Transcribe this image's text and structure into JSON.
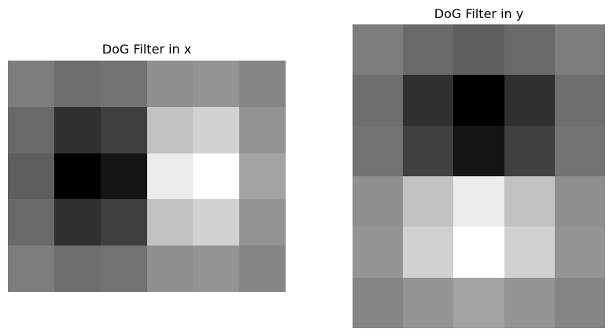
{
  "chart_data": [
    {
      "type": "heatmap",
      "title": "DoG Filter in x",
      "colormap": "gray",
      "axes_visible": false,
      "rows": 5,
      "cols": 6,
      "values": [
        [
          0.49,
          0.43,
          0.45,
          0.56,
          0.58,
          0.52
        ],
        [
          0.41,
          0.19,
          0.25,
          0.76,
          0.82,
          0.58
        ],
        [
          0.37,
          0.0,
          0.08,
          0.92,
          1.0,
          0.64
        ],
        [
          0.41,
          0.19,
          0.25,
          0.76,
          0.82,
          0.58
        ],
        [
          0.49,
          0.43,
          0.45,
          0.56,
          0.58,
          0.52
        ]
      ]
    },
    {
      "type": "heatmap",
      "title": "DoG Filter in y",
      "colormap": "gray",
      "axes_visible": false,
      "rows": 6,
      "cols": 5,
      "values": [
        [
          0.49,
          0.41,
          0.37,
          0.41,
          0.49
        ],
        [
          0.43,
          0.19,
          0.0,
          0.19,
          0.43
        ],
        [
          0.45,
          0.25,
          0.08,
          0.25,
          0.45
        ],
        [
          0.56,
          0.76,
          0.92,
          0.76,
          0.56
        ],
        [
          0.58,
          0.82,
          1.0,
          0.82,
          0.58
        ],
        [
          0.52,
          0.58,
          0.64,
          0.58,
          0.52
        ]
      ]
    }
  ]
}
